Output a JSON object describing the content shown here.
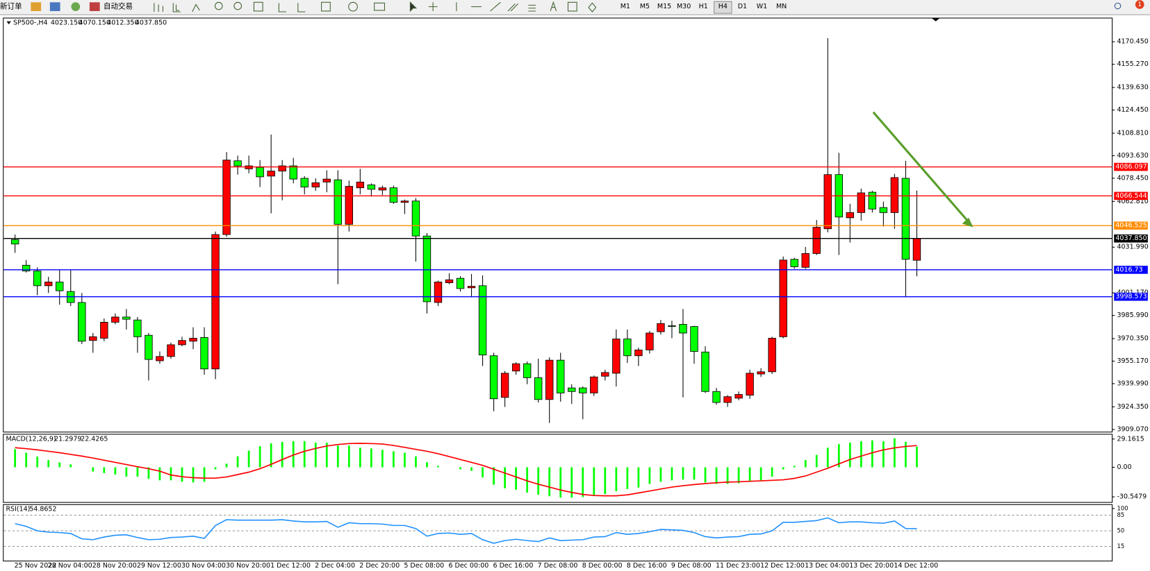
{
  "toolbar": {
    "new_order": "新订单",
    "auto_trading": "自动交易",
    "timeframes": [
      "M1",
      "M5",
      "M15",
      "M30",
      "H1",
      "H4",
      "D1",
      "W1",
      "MN"
    ],
    "active_timeframe": "H4",
    "notifications": 1
  },
  "chart_data": [
    {
      "type": "candlestick",
      "title": "SP500-,H4",
      "header_values": [
        "4023.150",
        "4070.150",
        "4012.350",
        "4037.850"
      ],
      "up_color": "#ff0000",
      "down_color": "#00ff00",
      "categories": [
        "25 Nov 2022",
        null,
        null,
        "28 Nov 04:00",
        null,
        null,
        null,
        "28 Nov 20:00",
        null,
        null,
        null,
        "29 Nov 12:00",
        null,
        null,
        null,
        "30 Nov 04:00",
        null,
        null,
        null,
        "30 Nov 20:00",
        null,
        null,
        null,
        "1 Dec 12:00",
        null,
        null,
        null,
        "2 Dec 04:00",
        null,
        null,
        null,
        "2 Dec 20:00",
        null,
        null,
        null,
        "5 Dec 08:00",
        null,
        null,
        null,
        "6 Dec 00:00",
        null,
        null,
        null,
        "6 Dec 16:00",
        null,
        null,
        null,
        "7 Dec 08:00",
        null,
        null,
        null,
        "8 Dec 00:00",
        null,
        null,
        null,
        "8 Dec 16:00",
        null,
        null,
        null,
        "9 Dec 08:00",
        null,
        null,
        null,
        "11 Dec 23:00",
        null,
        null,
        null,
        "12 Dec 12:00",
        null,
        null,
        null,
        "13 Dec 04:00",
        null,
        null,
        null,
        "13 Dec 20:00",
        null,
        null,
        null,
        "14 Dec 12:00",
        null,
        null
      ],
      "open": [
        4037.1,
        4019.8,
        4015.9,
        4006.0,
        4008.5,
        4002.1,
        3994.7,
        3969.1,
        3970.6,
        3981.4,
        3984.9,
        3982.9,
        3972.6,
        3955.4,
        3958.3,
        3966.2,
        3968.6,
        3971.1,
        3949.9,
        4040.5,
        4090.2,
        4084.8,
        4085.8,
        4079.9,
        4083.3,
        4086.8,
        4078.4,
        4072.5,
        4075.9,
        4077.4,
        4047.4,
        4072.0,
        4074.0,
        4070.5,
        4072.0,
        4062.2,
        4063.1,
        4039.5,
        3994.7,
        4008.0,
        4011.0,
        4004.6,
        4006.0,
        3958.8,
        3930.7,
        3948.5,
        3953.4,
        3944.0,
        3929.3,
        3955.8,
        3937.1,
        3937.1,
        3933.7,
        3945.0,
        3947.0,
        3970.1,
        3958.8,
        3962.7,
        3975.0,
        3979.0,
        3980.0,
        3978.5,
        3961.3,
        3934.7,
        3927.3,
        3930.2,
        3932.2,
        3946.5,
        3948.0,
        3971.6,
        4023.8,
        4018.4,
        4027.7,
        4044.4,
        4080.9,
        4051.8,
        4055.3,
        4069.0,
        4058.7,
        4055.3,
        4078.4,
        4023.15
      ],
      "high": [
        4040.5,
        4023.3,
        4018.4,
        4012.0,
        4016.9,
        4016.9,
        4001.1,
        3974.1,
        3983.9,
        3987.3,
        3990.3,
        3984.9,
        3974.1,
        3961.7,
        3967.7,
        3971.6,
        3978.0,
        3978.0,
        4042.5,
        4096.1,
        4093.7,
        4093.7,
        4090.7,
        4107.9,
        4090.7,
        4092.2,
        4079.9,
        4078.4,
        4083.8,
        4083.8,
        4076.9,
        4084.8,
        4075.0,
        4073.5,
        4073.5,
        4064.1,
        4065.1,
        4041.5,
        4009.5,
        4014.4,
        4012.4,
        4013.9,
        4012.9,
        3960.8,
        3948.5,
        3954.4,
        3954.9,
        3956.8,
        3957.8,
        3960.8,
        3939.6,
        3938.1,
        3945.5,
        3949.4,
        3976.5,
        3976.5,
        3964.2,
        3975.5,
        3982.9,
        3982.4,
        3990.3,
        3979.0,
        3965.2,
        3937.1,
        3932.2,
        3934.7,
        3949.4,
        3950.4,
        3971.6,
        4025.7,
        4024.8,
        4032.1,
        4050.3,
        4172.9,
        4095.6,
        4061.2,
        4071.5,
        4070.0,
        4062.7,
        4081.4,
        4090.2,
        4070.15
      ],
      "low": [
        4028.2,
        4014.9,
        3999.6,
        4001.1,
        3993.2,
        3992.3,
        3966.7,
        3960.8,
        3968.6,
        3980.0,
        3976.5,
        3960.8,
        3942.1,
        3953.4,
        3956.8,
        3965.2,
        3963.2,
        3946.0,
        3943.0,
        4039.0,
        4080.9,
        4081.8,
        4072.5,
        4054.8,
        4063.6,
        4075.0,
        4067.6,
        4070.0,
        4069.0,
        4007.0,
        4042.5,
        4067.6,
        4066.1,
        4067.1,
        4061.2,
        4054.3,
        4022.3,
        3987.3,
        3992.3,
        4007.0,
        4002.1,
        3998.2,
        3951.9,
        3921.4,
        3924.3,
        3946.0,
        3939.6,
        3927.3,
        3913.5,
        3927.8,
        3926.3,
        3916.0,
        3931.7,
        3942.1,
        3938.1,
        3953.9,
        3951.9,
        3960.3,
        3973.1,
        3970.6,
        3930.7,
        3953.4,
        3933.7,
        3925.8,
        3924.3,
        3928.8,
        3929.8,
        3944.5,
        3946.5,
        3970.6,
        4017.4,
        4017.4,
        4026.7,
        4042.0,
        4026.7,
        4035.1,
        4049.9,
        4055.3,
        4045.9,
        4044.4,
        3998.2,
        4012.35
      ],
      "close": [
        4034.1,
        4015.9,
        4006.0,
        4008.5,
        4002.6,
        3994.7,
        3968.6,
        3971.6,
        3981.4,
        3984.9,
        3983.4,
        3971.6,
        3956.3,
        3958.3,
        3966.2,
        3969.1,
        3970.6,
        3949.9,
        4040.5,
        4090.7,
        4086.8,
        4086.8,
        4079.4,
        4083.3,
        4086.8,
        4077.9,
        4072.5,
        4075.4,
        4077.9,
        4047.4,
        4073.0,
        4075.9,
        4071.0,
        4072.0,
        4062.2,
        4063.1,
        4039.5,
        3995.2,
        4008.5,
        4010.0,
        4004.1,
        4005.6,
        3959.3,
        3929.8,
        3947.0,
        3953.4,
        3944.0,
        3929.3,
        3955.8,
        3933.7,
        3934.7,
        3933.7,
        3944.5,
        3947.5,
        3970.1,
        3958.8,
        3962.7,
        3974.1,
        3980.5,
        3978.5,
        3974.1,
        3961.7,
        3934.7,
        3927.3,
        3931.2,
        3932.7,
        3947.0,
        3948.0,
        3970.6,
        4023.3,
        4018.8,
        4027.7,
        4045.4,
        4080.9,
        4052.3,
        4055.3,
        4068.6,
        4057.7,
        4055.3,
        4078.9,
        4023.8,
        4037.85
      ],
      "ylim": [
        3907.6,
        4186.2
      ],
      "yticks": [
        {
          "value": 4170.45,
          "label": "4170.450"
        },
        {
          "value": 4155.27,
          "label": "4155.270"
        },
        {
          "value": 4139.63,
          "label": "4139.630"
        },
        {
          "value": 4124.45,
          "label": "4124.450"
        },
        {
          "value": 4108.81,
          "label": "4108.810"
        },
        {
          "value": 4093.63,
          "label": "4093.630"
        },
        {
          "value": 4078.45,
          "label": "4078.450"
        },
        {
          "value": 4062.81,
          "label": "4062.810"
        },
        {
          "value": 4031.99,
          "label": "4031.990"
        },
        {
          "value": 4001.17,
          "label": "4001.170"
        },
        {
          "value": 3985.99,
          "label": "3985.990"
        },
        {
          "value": 3970.35,
          "label": "3970.350"
        },
        {
          "value": 3955.17,
          "label": "3955.170"
        },
        {
          "value": 3939.99,
          "label": "3939.990"
        },
        {
          "value": 3924.35,
          "label": "3924.350"
        },
        {
          "value": 3909.07,
          "label": "3909.070"
        }
      ],
      "hlines": [
        {
          "value": 4086.097,
          "color": "#ff0000"
        },
        {
          "value": 4066.544,
          "color": "#ff0000"
        },
        {
          "value": 4046.525,
          "color": "#ff8c00"
        },
        {
          "value": 4037.85,
          "label": "4037.850",
          "color": "#000000"
        },
        {
          "value": 4016.73,
          "color": "#0000ff"
        },
        {
          "value": 3998.573,
          "color": "#0000ff"
        }
      ]
    },
    {
      "type": "macd",
      "title": "MACD(12,26,9)",
      "histogram": {
        "color": "#00ff00",
        "values": [
          18.7,
          15,
          11,
          7.5,
          5,
          3,
          0,
          -4.5,
          -6,
          -7.5,
          -9.7,
          -9.7,
          -12,
          -13.5,
          -13.5,
          -15,
          -15.7,
          -15,
          -2.2,
          3.7,
          11.2,
          17.2,
          21.7,
          24.7,
          26.2,
          27,
          27,
          25.4,
          25.4,
          22.4,
          22.4,
          20.2,
          19.4,
          18,
          16.5,
          15,
          11.2,
          5.2,
          1.5,
          0,
          -2.2,
          -3.7,
          -10.5,
          -18,
          -21.7,
          -23.2,
          -26.2,
          -28.4,
          -29.9,
          -31.4,
          -31.4,
          -30.7,
          -29.2,
          -27.7,
          -24.7,
          -22.4,
          -20.9,
          -17.2,
          -15,
          -13.5,
          -12.7,
          -12.7,
          -15.7,
          -17.2,
          -17.2,
          -16.5,
          -15,
          -13.5,
          -9.7,
          -2.2,
          1.5,
          7.5,
          12.7,
          20.2,
          23.9,
          25.4,
          26.9,
          27.7,
          26.9,
          29.9,
          26.2,
          21.2979
        ]
      },
      "signal": {
        "color": "#ff0000",
        "values": [
          20.2,
          19.2,
          18,
          16.5,
          15,
          13.3,
          11.5,
          9.5,
          7.3,
          5,
          2.8,
          0.6,
          -1.5,
          -4,
          -8,
          -9.7,
          -10.8,
          -11.2,
          -11.2,
          -10,
          -7.5,
          -5,
          -1.5,
          3,
          8,
          12.7,
          16.5,
          19.5,
          22,
          23.5,
          24.5,
          24.7,
          24.5,
          24,
          22.5,
          20.5,
          18.5,
          16.5,
          14,
          11,
          8,
          5,
          2,
          -2,
          -6,
          -10,
          -14,
          -17.5,
          -20.5,
          -23.5,
          -26,
          -28,
          -29.2,
          -29.5,
          -29.5,
          -28.5,
          -26.5,
          -24.5,
          -22.4,
          -20.5,
          -19,
          -17.8,
          -16.8,
          -16,
          -15.3,
          -15,
          -14.5,
          -14,
          -13.5,
          -13,
          -11.5,
          -9,
          -5,
          -1,
          3.5,
          8,
          11.5,
          15,
          18,
          20,
          21.5,
          22.4265
        ]
      },
      "ylim": [
        -35.9,
        33.7
      ],
      "yticks": [
        29.1615,
        {
          "value": 0,
          "label": "0.00"
        },
        -30.5479
      ]
    },
    {
      "type": "line",
      "title": "RSI(14)",
      "color": "#1e90ff",
      "values": [
        66,
        60,
        50,
        47,
        46,
        44,
        32,
        30,
        36,
        40,
        41,
        35,
        30,
        31,
        35,
        36,
        38,
        33,
        62,
        75,
        74,
        74,
        74,
        74,
        75,
        72,
        70,
        70,
        71,
        58,
        68,
        66,
        66,
        65,
        62,
        62,
        55,
        38,
        44,
        45,
        42,
        44,
        30,
        22,
        28,
        31,
        28,
        26,
        34,
        28,
        29,
        30,
        36,
        37,
        46,
        42,
        44,
        48,
        53,
        52,
        51,
        46,
        37,
        34,
        36,
        37,
        42,
        43,
        50,
        69,
        69,
        71,
        73,
        79,
        68,
        70,
        70,
        68,
        67,
        72,
        55,
        54.8652
      ],
      "ylim": [
        -17,
        108
      ],
      "yticks": [
        100,
        85,
        50,
        15
      ]
    }
  ]
}
